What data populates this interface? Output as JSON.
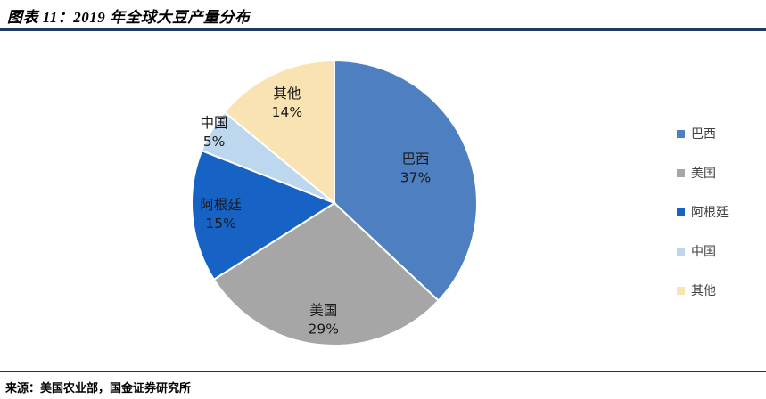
{
  "header": {
    "title": "图表 11：2019 年全球大豆产量分布"
  },
  "chart_data": {
    "type": "pie",
    "title": "2019 年全球大豆产量分布",
    "labels": [
      "巴西",
      "美国",
      "阿根廷",
      "中国",
      "其他"
    ],
    "values": [
      37,
      29,
      15,
      5,
      14
    ],
    "unit": "%",
    "colors": [
      "#4e7fc1",
      "#a6a6a6",
      "#1663c5",
      "#bdd7ee",
      "#fae3b2"
    ],
    "start_angle_deg": 0,
    "direction": "clockwise",
    "legend_position": "right",
    "data_labels": [
      "巴西 37%",
      "美国 29%",
      "阿根廷 15%",
      "中国 5%",
      "其他 14%"
    ]
  },
  "legend": {
    "items": [
      {
        "label": "巴西",
        "color": "#4e7fc1"
      },
      {
        "label": "美国",
        "color": "#a6a6a6"
      },
      {
        "label": "阿根廷",
        "color": "#1663c5"
      },
      {
        "label": "中国",
        "color": "#bdd7ee"
      },
      {
        "label": "其他",
        "color": "#fae3b2"
      }
    ]
  },
  "footer": {
    "source": "来源：美国农业部，国金证券研究所"
  }
}
